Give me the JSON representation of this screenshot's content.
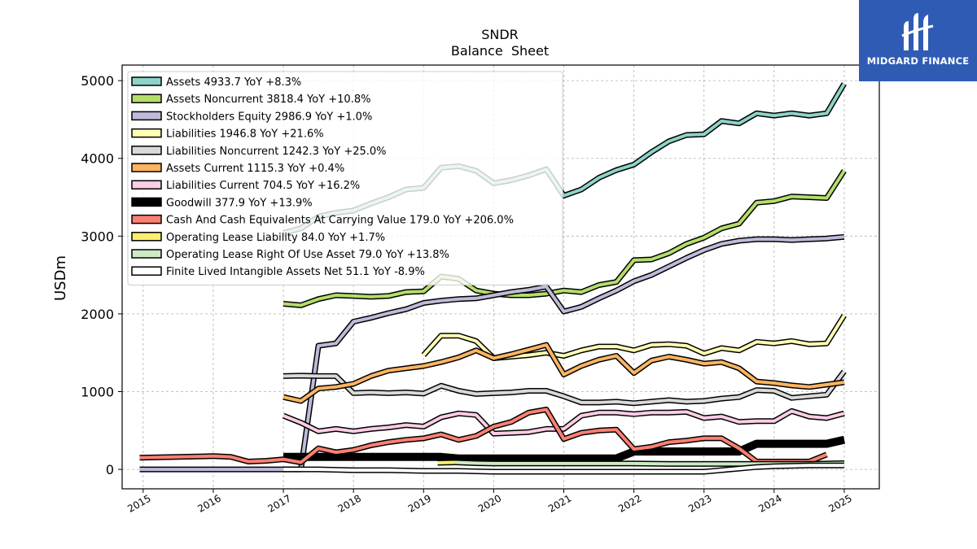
{
  "chart_data": {
    "type": "line",
    "title": "SNDR",
    "subtitle": "Balance  Sheet",
    "ylabel": "USDm",
    "xlabel": "",
    "xlim": [
      2014.7,
      2025.5
    ],
    "ylim": [
      -250,
      5200
    ],
    "x_ticks": [
      2015,
      2016,
      2017,
      2018,
      2019,
      2020,
      2021,
      2022,
      2023,
      2024,
      2025
    ],
    "x_tick_labels": [
      "2015",
      "2016",
      "2017",
      "2018",
      "2019",
      "2020",
      "2021",
      "2022",
      "2023",
      "2024",
      "2025"
    ],
    "y_ticks": [
      0,
      1000,
      2000,
      3000,
      4000,
      5000
    ],
    "y_tick_labels": [
      "0",
      "1000",
      "2000",
      "3000",
      "4000",
      "5000"
    ],
    "grid": true,
    "legend_position": "top-left",
    "series": [
      {
        "name": "Assets  4933.7 YoY +8.3%",
        "color": "#8dd3c7",
        "width": 4,
        "x": [
          2017.0,
          2017.25,
          2017.5,
          2017.75,
          2018.0,
          2018.25,
          2018.5,
          2018.75,
          2019.0,
          2019.25,
          2019.5,
          2019.75,
          2020.0,
          2020.25,
          2020.5,
          2020.75,
          2021.0,
          2021.25,
          2021.5,
          2021.75,
          2022.0,
          2022.25,
          2022.5,
          2022.75,
          2023.0,
          2023.25,
          2023.5,
          2023.75,
          2024.0,
          2024.25,
          2024.5,
          2024.75,
          2025.0
        ],
        "y": [
          3040,
          3100,
          3250,
          3300,
          3330,
          3420,
          3500,
          3600,
          3620,
          3880,
          3900,
          3840,
          3680,
          3720,
          3780,
          3860,
          3520,
          3600,
          3750,
          3850,
          3920,
          4080,
          4220,
          4300,
          4310,
          4480,
          4450,
          4580,
          4550,
          4580,
          4550,
          4580,
          4960
        ]
      },
      {
        "name": "Assets Noncurrent  3818.4 YoY +10.8%",
        "color": "#b3de69",
        "width": 4,
        "x": [
          2017.0,
          2017.25,
          2017.5,
          2017.75,
          2018.0,
          2018.25,
          2018.5,
          2018.75,
          2019.0,
          2019.25,
          2019.5,
          2019.75,
          2020.0,
          2020.25,
          2020.5,
          2020.75,
          2021.0,
          2021.25,
          2021.5,
          2021.75,
          2022.0,
          2022.25,
          2022.5,
          2022.75,
          2023.0,
          2023.25,
          2023.5,
          2023.75,
          2024.0,
          2024.25,
          2024.5,
          2024.75,
          2025.0
        ],
        "y": [
          2130,
          2110,
          2190,
          2240,
          2230,
          2220,
          2230,
          2280,
          2290,
          2480,
          2450,
          2300,
          2260,
          2240,
          2240,
          2260,
          2300,
          2280,
          2370,
          2410,
          2690,
          2700,
          2780,
          2900,
          2980,
          3100,
          3160,
          3430,
          3450,
          3510,
          3500,
          3490,
          3840
        ]
      },
      {
        "name": "Stockholders Equity  2986.9 YoY +1.0%",
        "color": "#bebada",
        "width": 4,
        "x": [
          2014.95,
          2015.5,
          2016.0,
          2016.5,
          2017.0,
          2017.2,
          2017.25,
          2017.5,
          2017.75,
          2018.0,
          2018.25,
          2018.5,
          2018.75,
          2019.0,
          2019.25,
          2019.5,
          2019.75,
          2020.0,
          2020.25,
          2020.5,
          2020.75,
          2021.0,
          2021.25,
          2021.5,
          2021.75,
          2022.0,
          2022.25,
          2022.5,
          2022.75,
          2023.0,
          2023.25,
          2023.5,
          2023.75,
          2024.0,
          2024.25,
          2024.5,
          2024.75,
          2025.0
        ],
        "y": [
          0,
          0,
          0,
          0,
          0,
          0,
          0,
          1590,
          1620,
          1900,
          1950,
          2010,
          2060,
          2140,
          2170,
          2190,
          2200,
          2240,
          2280,
          2310,
          2350,
          2030,
          2090,
          2200,
          2300,
          2420,
          2500,
          2610,
          2720,
          2820,
          2900,
          2940,
          2960,
          2960,
          2950,
          2960,
          2970,
          2990
        ]
      },
      {
        "name": "Liabilities  1946.8 YoY +21.6%",
        "color": "#ffffb3",
        "width": 4,
        "x": [
          2019.0,
          2019.25,
          2019.5,
          2019.75,
          2020.0,
          2020.25,
          2020.5,
          2020.75,
          2021.0,
          2021.25,
          2021.5,
          2021.75,
          2022.0,
          2022.25,
          2022.5,
          2022.75,
          2023.0,
          2023.25,
          2023.5,
          2023.75,
          2024.0,
          2024.25,
          2024.5,
          2024.75,
          2025.0
        ],
        "y": [
          1470,
          1720,
          1720,
          1650,
          1430,
          1450,
          1470,
          1500,
          1460,
          1530,
          1580,
          1580,
          1530,
          1600,
          1610,
          1590,
          1490,
          1560,
          1530,
          1640,
          1620,
          1650,
          1610,
          1620,
          1980
        ]
      },
      {
        "name": "Liabilities Noncurrent  1242.3 YoY +25.0%",
        "color": "#d9d9d9",
        "width": 4,
        "x": [
          2017.0,
          2017.25,
          2017.5,
          2017.75,
          2018.0,
          2018.25,
          2018.5,
          2018.75,
          2019.0,
          2019.25,
          2019.5,
          2019.75,
          2020.0,
          2020.25,
          2020.5,
          2020.75,
          2021.0,
          2021.25,
          2021.5,
          2021.75,
          2022.0,
          2022.25,
          2022.5,
          2022.75,
          2023.0,
          2023.25,
          2023.5,
          2023.75,
          2024.0,
          2024.25,
          2024.5,
          2024.75,
          2025.0
        ],
        "y": [
          1200,
          1205,
          1200,
          1200,
          980,
          990,
          980,
          990,
          975,
          1075,
          1010,
          970,
          980,
          990,
          1010,
          1010,
          940,
          860,
          860,
          870,
          850,
          870,
          890,
          870,
          880,
          910,
          930,
          1020,
          1010,
          920,
          940,
          960,
          1260
        ]
      },
      {
        "name": "Assets Current  1115.3 YoY +0.4%",
        "color": "#fdb462",
        "width": 4,
        "x": [
          2017.0,
          2017.25,
          2017.5,
          2017.75,
          2018.0,
          2018.25,
          2018.5,
          2018.75,
          2019.0,
          2019.25,
          2019.5,
          2019.75,
          2020.0,
          2020.25,
          2020.5,
          2020.75,
          2021.0,
          2021.25,
          2021.5,
          2021.75,
          2022.0,
          2022.25,
          2022.5,
          2022.75,
          2023.0,
          2023.25,
          2023.5,
          2023.75,
          2024.0,
          2024.25,
          2024.5,
          2024.75,
          2025.0
        ],
        "y": [
          930,
          880,
          1040,
          1060,
          1100,
          1200,
          1270,
          1300,
          1330,
          1380,
          1440,
          1530,
          1430,
          1480,
          1540,
          1600,
          1220,
          1330,
          1410,
          1460,
          1240,
          1400,
          1450,
          1410,
          1360,
          1380,
          1300,
          1130,
          1110,
          1080,
          1060,
          1090,
          1120
        ]
      },
      {
        "name": "Liabilities Current  704.5 YoY +16.2%",
        "color": "#fccde5",
        "width": 4,
        "x": [
          2017.0,
          2017.25,
          2017.5,
          2017.75,
          2018.0,
          2018.25,
          2018.5,
          2018.75,
          2019.0,
          2019.25,
          2019.5,
          2019.75,
          2020.0,
          2020.25,
          2020.5,
          2020.75,
          2021.0,
          2021.25,
          2021.5,
          2021.75,
          2022.0,
          2022.25,
          2022.5,
          2022.75,
          2023.0,
          2023.25,
          2023.5,
          2023.75,
          2024.0,
          2024.25,
          2024.5,
          2024.75,
          2025.0
        ],
        "y": [
          690,
          600,
          490,
          520,
          490,
          520,
          540,
          570,
          550,
          670,
          720,
          700,
          460,
          470,
          480,
          520,
          520,
          690,
          730,
          730,
          710,
          730,
          730,
          740,
          660,
          680,
          610,
          620,
          620,
          750,
          680,
          660,
          720
        ]
      },
      {
        "name": "Goodwill  377.9 YoY +13.9%",
        "color": "#000000",
        "width": 7,
        "x": [
          2017.0,
          2017.5,
          2018.0,
          2018.5,
          2019.0,
          2019.25,
          2019.5,
          2019.75,
          2020.0,
          2020.5,
          2021.0,
          2021.5,
          2021.75,
          2022.0,
          2022.5,
          2023.0,
          2023.5,
          2023.75,
          2024.0,
          2024.5,
          2024.75,
          2025.0
        ],
        "y": [
          160,
          160,
          160,
          160,
          160,
          160,
          140,
          140,
          140,
          140,
          140,
          140,
          140,
          230,
          230,
          230,
          230,
          330,
          330,
          330,
          330,
          380
        ]
      },
      {
        "name": "Cash And Cash Equivalents At Carrying Value  179.0 YoY +206.0%",
        "color": "#fb8072",
        "width": 4,
        "x": [
          2014.95,
          2015.5,
          2016.0,
          2016.25,
          2016.5,
          2016.75,
          2017.0,
          2017.25,
          2017.5,
          2017.75,
          2018.0,
          2018.25,
          2018.5,
          2018.75,
          2019.0,
          2019.25,
          2019.5,
          2019.75,
          2020.0,
          2020.25,
          2020.5,
          2020.75,
          2021.0,
          2021.25,
          2021.5,
          2021.75,
          2022.0,
          2022.25,
          2022.5,
          2022.75,
          2023.0,
          2023.25,
          2023.5,
          2023.75,
          2024.0,
          2024.25,
          2024.5,
          2024.75
        ],
        "y": [
          150,
          160,
          170,
          160,
          100,
          110,
          130,
          90,
          270,
          220,
          250,
          310,
          350,
          380,
          400,
          450,
          380,
          430,
          550,
          610,
          730,
          770,
          390,
          470,
          500,
          510,
          260,
          290,
          350,
          370,
          400,
          400,
          270,
          100,
          100,
          100,
          100,
          190
        ]
      },
      {
        "name": "Operating Lease Liability  84.0 YoY +1.7%",
        "color": "#ffed6f",
        "width": 4,
        "x": [
          2019.2,
          2019.45
        ],
        "y": [
          85,
          90
        ]
      },
      {
        "name": "Operating Lease Right Of Use Asset  79.0 YoY +13.8%",
        "color": "#ccebc5",
        "width": 4,
        "x": [
          2019.45,
          2019.75,
          2020.0,
          2020.5,
          2021.0,
          2021.5,
          2022.0,
          2022.5,
          2023.0,
          2023.5,
          2024.0,
          2024.5,
          2025.0
        ],
        "y": [
          90,
          80,
          75,
          75,
          75,
          75,
          75,
          70,
          70,
          70,
          70,
          70,
          80
        ]
      },
      {
        "name": "Finite Lived Intangible Assets Net  51.1 YoY -8.9%",
        "color": "#ffffff",
        "width": 4,
        "x": [
          2017.0,
          2017.5,
          2018.0,
          2018.5,
          2019.0,
          2019.5,
          2020.0,
          2020.5,
          2021.0,
          2021.5,
          2022.0,
          2022.5,
          2023.0,
          2023.5,
          2023.75,
          2024.0,
          2024.5,
          2025.0
        ],
        "y": [
          0,
          0,
          -10,
          -10,
          -20,
          -20,
          -30,
          -30,
          -30,
          -30,
          -30,
          -30,
          -30,
          10,
          30,
          40,
          50,
          50
        ]
      }
    ]
  },
  "brand": {
    "name": "MIDGARD FINANCE",
    "background": "#2f5bb5"
  }
}
